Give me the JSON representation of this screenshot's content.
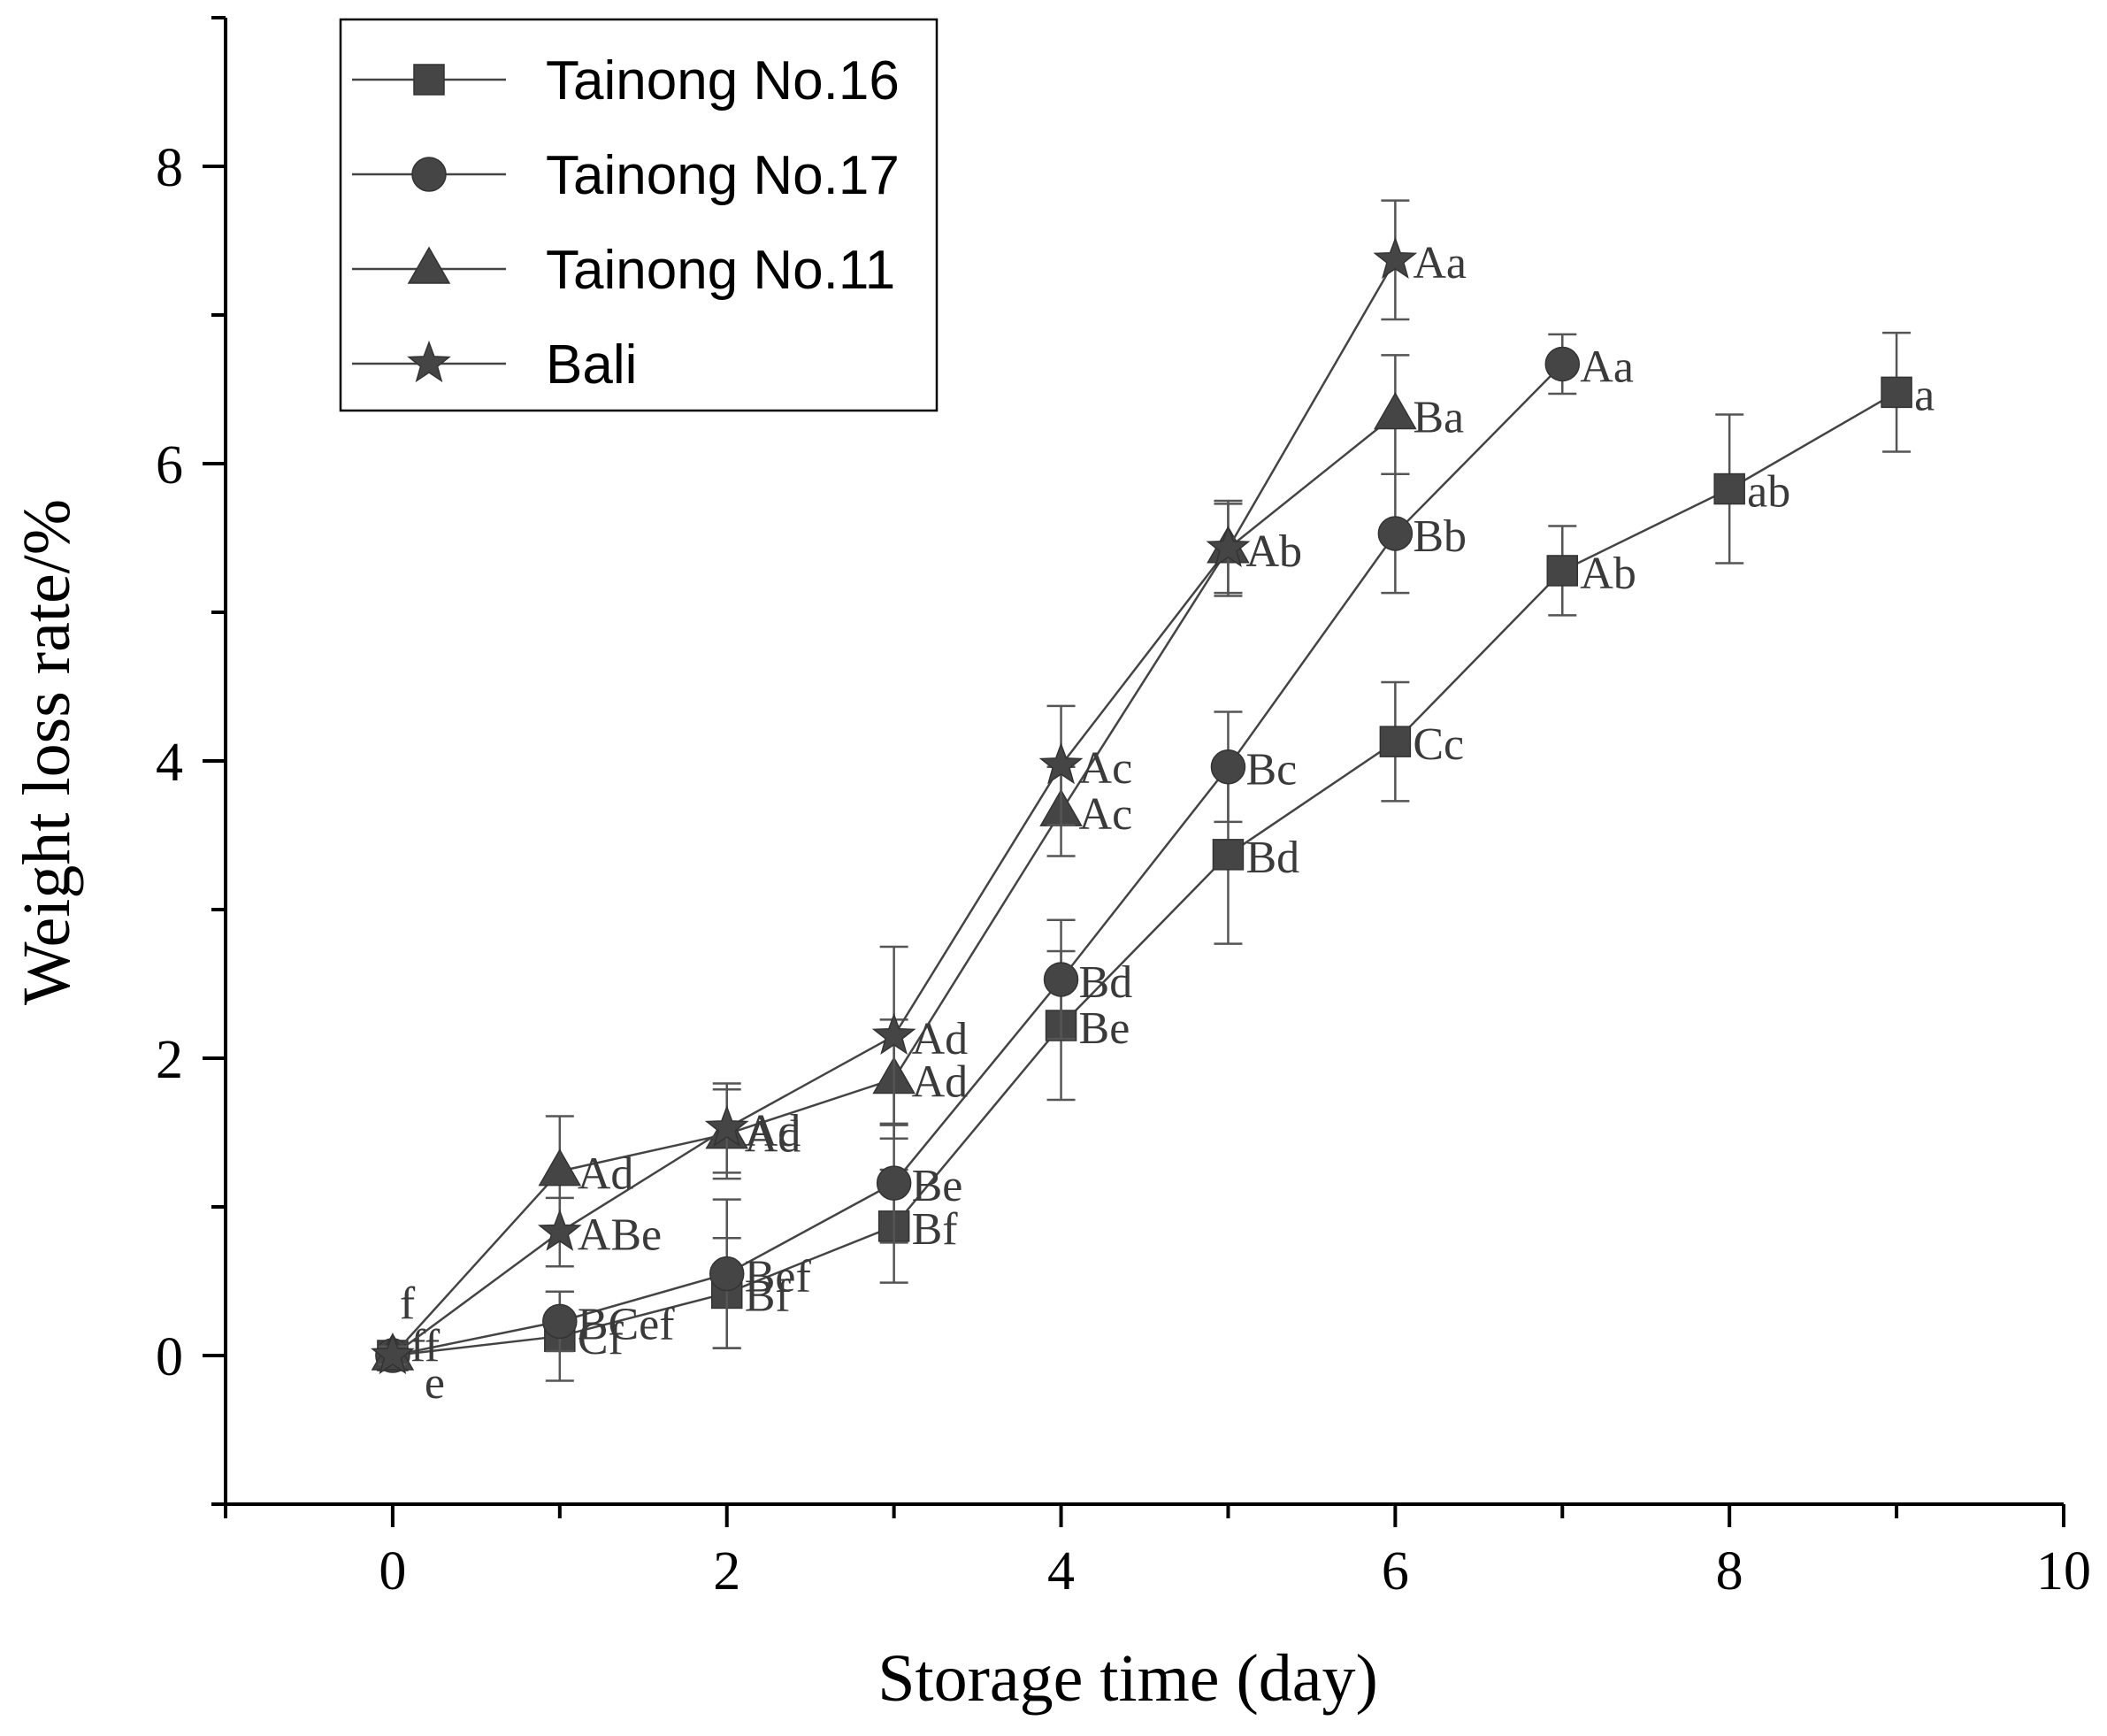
{
  "chart_data": {
    "type": "line",
    "title": "",
    "xlabel": "Storage time (day)",
    "ylabel": "Weight loss rate/%",
    "xlim": [
      -1,
      10
    ],
    "ylim": [
      -1,
      9
    ],
    "xticks": [
      0,
      2,
      4,
      6,
      8,
      10
    ],
    "yticks": [
      0,
      2,
      4,
      6,
      8
    ],
    "legend_position": "top-left",
    "series": [
      {
        "name": "Tainong No.16",
        "marker": "square",
        "x": [
          0,
          1,
          2,
          3,
          4,
          5,
          6,
          7,
          8,
          9
        ],
        "y": [
          0,
          0.13,
          0.42,
          0.87,
          2.22,
          3.37,
          4.13,
          5.28,
          5.83,
          6.48
        ],
        "err": [
          0.08,
          0.3,
          0.37,
          0.38,
          0.5,
          0.6,
          0.4,
          0.3,
          0.5,
          0.4
        ],
        "labels": [
          "e",
          "Cf",
          "Bf",
          "Bf",
          "Be",
          "Bd",
          "Cc",
          "Ab",
          "ab",
          "a"
        ]
      },
      {
        "name": "Tainong No.17",
        "marker": "circle",
        "x": [
          0,
          1,
          2,
          3,
          4,
          5,
          6,
          7
        ],
        "y": [
          0,
          0.23,
          0.55,
          1.16,
          2.53,
          3.96,
          5.53,
          6.67
        ],
        "err": [
          0.06,
          0.2,
          0.5,
          0.4,
          0.4,
          0.37,
          0.4,
          0.2
        ],
        "labels": [
          "f",
          "BCef",
          "Bef",
          "Be",
          "Bd",
          "Bc",
          "Bb",
          "Aa"
        ]
      },
      {
        "name": "Tainong No.11",
        "marker": "triangle",
        "x": [
          0,
          1,
          2,
          3,
          4,
          5,
          6
        ],
        "y": [
          0,
          1.24,
          1.49,
          1.86,
          3.66,
          5.43,
          6.33
        ],
        "err": [
          0.06,
          0.37,
          0.3,
          0.4,
          0.3,
          0.3,
          0.4
        ],
        "labels": [
          "f",
          "Ad",
          "Ad",
          "Ad",
          "Ac",
          "Ab",
          "Ba"
        ]
      },
      {
        "name": "Bali",
        "marker": "star",
        "x": [
          0,
          1,
          2,
          3,
          4,
          5,
          6
        ],
        "y": [
          0,
          0.83,
          1.53,
          2.15,
          3.97,
          5.43,
          7.37
        ],
        "err": [
          0.06,
          0.23,
          0.3,
          0.6,
          0.4,
          0.32,
          0.4
        ],
        "labels": [
          "f",
          "ABe",
          "Ad",
          "Ad",
          "Ac",
          "Ab",
          "Aa"
        ]
      }
    ]
  }
}
